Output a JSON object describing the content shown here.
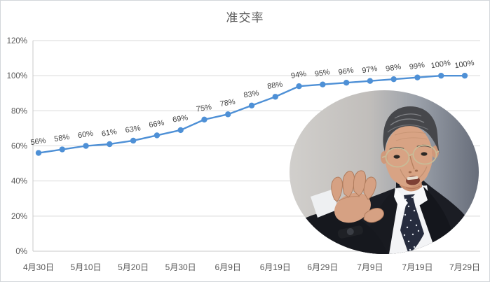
{
  "page": {
    "title": "准交率"
  },
  "chart_data": {
    "type": "line",
    "title": "准交率",
    "values": [
      56,
      58,
      60,
      61,
      63,
      66,
      69,
      75,
      78,
      83,
      88,
      94,
      95,
      96,
      97,
      98,
      99,
      100,
      100
    ],
    "data_labels": [
      "56%",
      "58%",
      "60%",
      "61%",
      "63%",
      "66%",
      "69%",
      "75%",
      "78%",
      "83%",
      "88%",
      "94%",
      "95%",
      "96%",
      "97%",
      "98%",
      "99%",
      "100%",
      "100%"
    ],
    "x_tick_labels": [
      "4月30日",
      "5月10日",
      "5月20日",
      "5月30日",
      "6月9日",
      "6月19日",
      "6月29日",
      "7月9日",
      "7月19日",
      "7月29日"
    ],
    "x_tick_every": 2,
    "y_tick_labels": [
      "0%",
      "20%",
      "40%",
      "60%",
      "80%",
      "100%",
      "120%"
    ],
    "ylim": [
      0,
      120
    ],
    "grid": true,
    "legend_position": "none",
    "series_color": "#4e90d6",
    "gridline_color": "#d9d9d9",
    "axis_text_color": "#595959",
    "data_label_color": "#3f3f3f"
  },
  "overlay_image": {
    "icon": "businessman-portrait-photo"
  }
}
